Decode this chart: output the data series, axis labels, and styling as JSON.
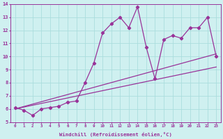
{
  "xlabel": "Windchill (Refroidissement éolien,°C)",
  "bg_color": "#cff0f0",
  "grid_color": "#aadddd",
  "line_color": "#993399",
  "x_data": [
    0,
    1,
    2,
    3,
    4,
    5,
    6,
    7,
    8,
    9,
    10,
    11,
    12,
    13,
    14,
    15,
    16,
    17,
    18,
    19,
    20,
    21,
    22,
    23
  ],
  "y_scatter": [
    6.1,
    5.9,
    5.5,
    6.0,
    6.1,
    6.2,
    6.5,
    6.6,
    8.0,
    9.5,
    11.8,
    12.5,
    13.0,
    12.2,
    13.8,
    10.7,
    8.3,
    11.3,
    11.6,
    11.4,
    12.2,
    12.2,
    13.0,
    10.0
  ],
  "y_line1_start": 6.0,
  "y_line1_end": 10.2,
  "y_line2_start": 6.0,
  "y_line2_end": 9.2,
  "ylim": [
    5,
    14
  ],
  "xlim": [
    -0.5,
    23.5
  ],
  "yticks": [
    5,
    6,
    7,
    8,
    9,
    10,
    11,
    12,
    13,
    14
  ],
  "xticks": [
    0,
    1,
    2,
    3,
    4,
    5,
    6,
    7,
    8,
    9,
    10,
    11,
    12,
    13,
    14,
    15,
    16,
    17,
    18,
    19,
    20,
    21,
    22,
    23
  ]
}
